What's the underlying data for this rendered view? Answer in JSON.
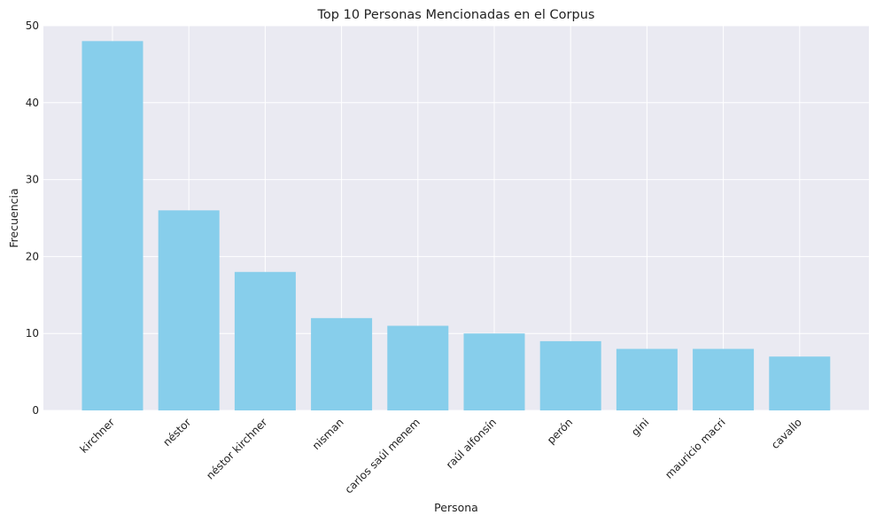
{
  "chart_data": {
    "type": "bar",
    "title": "Top 10 Personas Mencionadas en el Corpus",
    "xlabel": "Persona",
    "ylabel": "Frecuencia",
    "categories": [
      "kirchner",
      "néstor",
      "néstor kirchner",
      "nisman",
      "carlos saúl menem",
      "raúl alfonsín",
      "perón",
      "gini",
      "mauricio macri",
      "cavallo"
    ],
    "values": [
      48,
      26,
      18,
      12,
      11,
      10,
      9,
      8,
      8,
      7
    ],
    "ylim": [
      0,
      50
    ],
    "yticks": [
      0,
      10,
      20,
      30,
      40,
      50
    ],
    "grid": true,
    "colors": {
      "bar": "#87CEEB",
      "background": "#EAEAF2",
      "grid": "#FFFFFF"
    }
  }
}
